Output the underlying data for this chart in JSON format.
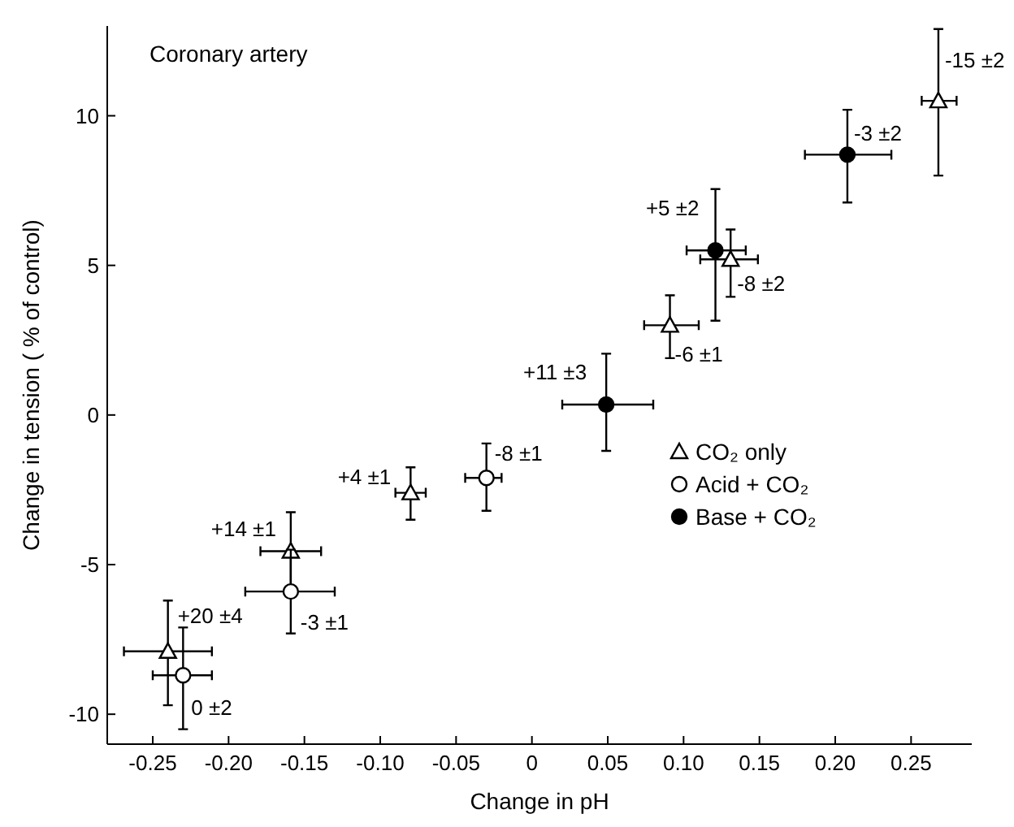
{
  "chart_data": {
    "type": "scatter",
    "title": "Coronary artery",
    "xlabel": "Change in pH",
    "ylabel": "Change in tension ( % of control)",
    "xlim": [
      -0.28,
      0.29
    ],
    "ylim": [
      -11,
      13
    ],
    "xticks": [
      {
        "value": -0.25,
        "label": "-0.25"
      },
      {
        "value": -0.2,
        "label": "-0.20"
      },
      {
        "value": -0.15,
        "label": "-0.15"
      },
      {
        "value": -0.1,
        "label": "-0.10"
      },
      {
        "value": -0.05,
        "label": "-0.05"
      },
      0,
      {
        "value": 0.05,
        "label": "0.05"
      },
      {
        "value": 0.1,
        "label": "0.10"
      },
      {
        "value": 0.15,
        "label": "0.15"
      },
      {
        "value": 0.2,
        "label": "0.20"
      },
      {
        "value": 0.25,
        "label": "0.25"
      }
    ],
    "yticks": [
      -10,
      -5,
      0,
      5,
      10
    ],
    "grid": false,
    "legend": "right",
    "series": [
      {
        "name": "CO₂ only",
        "color": "#ffffff",
        "marker": "triangle",
        "x": [
          -0.24,
          -0.159,
          -0.08,
          0.091,
          0.131,
          0.268
        ],
        "values": [
          -7.9,
          -4.55,
          -2.6,
          3.0,
          5.2,
          10.5
        ],
        "errors": [
          [
            -9.7,
            -6.2
          ],
          [
            -5.9,
            -3.25
          ],
          [
            -3.5,
            -1.75
          ],
          [
            1.9,
            4.0
          ],
          [
            3.95,
            6.2
          ],
          [
            8.0,
            12.9
          ]
        ],
        "xerrors": [
          [
            -0.269,
            -0.211
          ],
          [
            -0.179,
            -0.139
          ],
          [
            -0.09,
            -0.07
          ],
          [
            0.074,
            0.11
          ],
          [
            0.111,
            0.149
          ],
          [
            0.257,
            0.28
          ]
        ]
      },
      {
        "name": "Acid + CO₂",
        "color": "#ffffff",
        "marker": "circle",
        "x": [
          -0.23,
          -0.159,
          -0.03
        ],
        "values": [
          -8.7,
          -5.9,
          -2.1
        ],
        "errors": [
          [
            -10.5,
            -7.1
          ],
          [
            -7.3,
            -4.5
          ],
          [
            -3.2,
            -0.95
          ]
        ],
        "xerrors": [
          [
            -0.25,
            -0.211
          ],
          [
            -0.189,
            -0.13
          ],
          [
            -0.044,
            -0.02
          ]
        ]
      },
      {
        "name": "Base + CO₂",
        "color": "#000000",
        "marker": "circle",
        "x": [
          0.049,
          0.121,
          0.208
        ],
        "values": [
          0.35,
          5.5,
          8.7
        ],
        "errors": [
          [
            -1.2,
            2.05
          ],
          [
            3.15,
            7.55
          ],
          [
            7.1,
            10.2
          ]
        ],
        "xerrors": [
          [
            0.02,
            0.08
          ],
          [
            0.102,
            0.141
          ],
          [
            0.18,
            0.237
          ]
        ]
      }
    ],
    "annotations": [
      {
        "text": "+20 ±4",
        "x": -0.24,
        "y": -7.9
      },
      {
        "text": "0 ±2",
        "x": -0.23,
        "y": -8.7
      },
      {
        "text": "+14 ±1",
        "x": -0.159,
        "y": -4.55
      },
      {
        "text": "-3 ±1",
        "x": -0.159,
        "y": -5.9
      },
      {
        "text": "+4 ±1",
        "x": -0.08,
        "y": -2.6
      },
      {
        "text": "-8 ±1",
        "x": -0.03,
        "y": -2.1
      },
      {
        "text": "+11 ±3",
        "x": 0.049,
        "y": 0.35
      },
      {
        "text": "-6 ±1",
        "x": 0.091,
        "y": 3.0
      },
      {
        "text": "+5 ±2",
        "x": 0.121,
        "y": 5.5
      },
      {
        "text": "-8 ±2",
        "x": 0.131,
        "y": 5.2
      },
      {
        "text": "-3 ±2",
        "x": 0.208,
        "y": 8.7
      },
      {
        "text": "-15 ±2",
        "x": 0.268,
        "y": 10.5
      }
    ]
  }
}
